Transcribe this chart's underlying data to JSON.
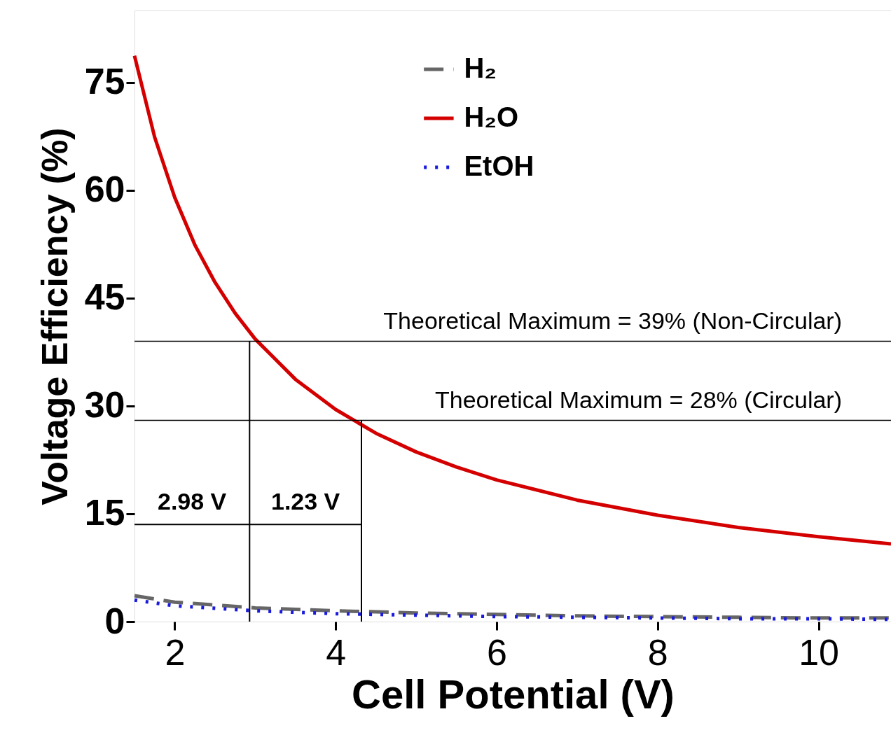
{
  "chart_data": {
    "type": "line",
    "xlabel": "Cell Potential (V)",
    "ylabel": "Voltage Efficiency (%)",
    "xlim": [
      1.5,
      10.9
    ],
    "ylim": [
      0,
      85
    ],
    "xticks": [
      2,
      4,
      6,
      8,
      10
    ],
    "yticks": [
      0,
      15,
      30,
      45,
      60,
      75
    ],
    "grid": false,
    "legend": "top",
    "marker": "none",
    "series": [
      {
        "name": "H₂",
        "color": "#666666",
        "line_style": "dashed",
        "x": [
          1.5,
          2,
          3,
          4,
          5,
          6,
          7,
          8,
          9,
          10,
          10.9
        ],
        "values": [
          3.6,
          2.7,
          1.9,
          1.5,
          1.2,
          1.0,
          0.8,
          0.7,
          0.6,
          0.5,
          0.5
        ]
      },
      {
        "name": "H₂O",
        "color": "#d40000",
        "line_style": "solid",
        "x": [
          1.5,
          1.75,
          2,
          2.25,
          2.5,
          2.75,
          3,
          3.5,
          4,
          4.5,
          5,
          5.5,
          6,
          7,
          8,
          9,
          10,
          10.9
        ],
        "values": [
          78.7,
          67.4,
          59.0,
          52.4,
          47.2,
          42.9,
          39.3,
          33.7,
          29.5,
          26.2,
          23.6,
          21.5,
          19.7,
          16.9,
          14.8,
          13.1,
          11.8,
          10.8
        ]
      },
      {
        "name": "EtOH",
        "color": "#1a1adf",
        "line_style": "dotted",
        "x": [
          1.5,
          2,
          3,
          4,
          5,
          6,
          7,
          8,
          9,
          10,
          10.9
        ],
        "values": [
          3.0,
          2.2,
          1.5,
          1.1,
          0.9,
          0.7,
          0.6,
          0.5,
          0.4,
          0.4,
          0.3
        ]
      },
      {
        "color": "#000000",
        "line_style": "solid",
        "x": [
          2.93,
          2.93
        ],
        "values": [
          0,
          39
        ]
      },
      {
        "color": "#000000",
        "line_style": "solid",
        "x": [
          4.32,
          4.32
        ],
        "values": [
          0,
          28
        ]
      },
      {
        "color": "#000000",
        "line_style": "solid",
        "x": [
          1.5,
          2.93,
          4.32
        ],
        "values": [
          13.5,
          13.5,
          13.5
        ]
      }
    ],
    "ref_lines": [
      {
        "axis": "y",
        "value": 39,
        "label": "Theoretical Maximum = 39% (Non-Circular)",
        "color": "#000000"
      },
      {
        "axis": "y",
        "value": 28,
        "label": "Theoretical Maximum = 28% (Circular)",
        "color": "#000000"
      }
    ],
    "annotations": [
      "2.98 V",
      "1.23 V"
    ]
  }
}
